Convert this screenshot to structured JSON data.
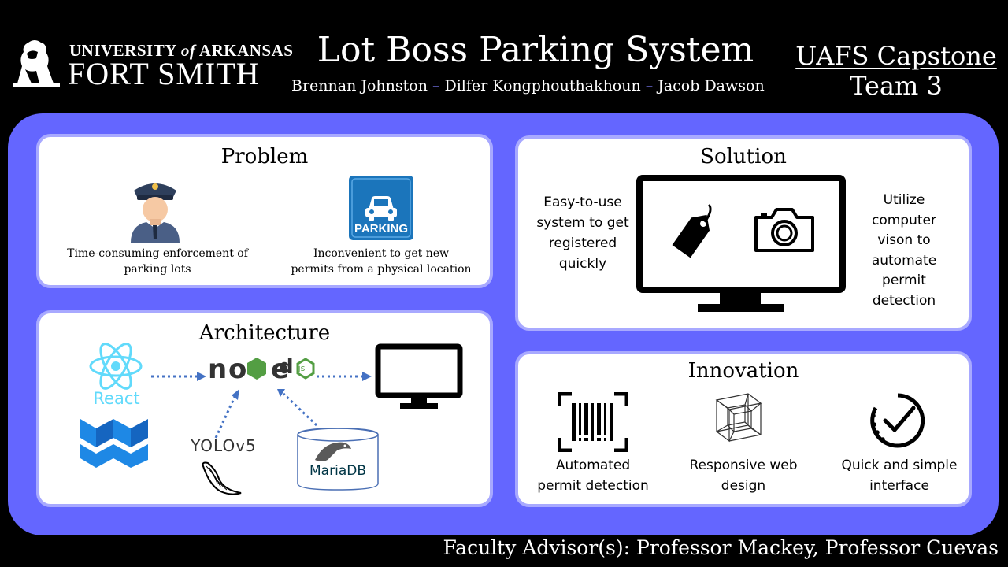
{
  "header": {
    "logo": {
      "line1_prefix": "UNIVERSITY ",
      "line1_of": "of",
      "line1_suffix": " ARKANSAS",
      "line2": "FORT SMITH",
      "icon": "lion-icon"
    },
    "title": "Lot Boss Parking System",
    "authors": [
      "Brennan Johnston",
      "Dilfer Kongphouthakhoun",
      "Jacob Dawson"
    ],
    "author_separator": "–",
    "capstone_line1": "UAFS Capstone",
    "capstone_line2": "Team 3"
  },
  "problem": {
    "title": "Problem",
    "items": [
      {
        "icon": "police-officer-icon",
        "caption_line1": "Time-consuming enforcement of",
        "caption_line2": "parking lots"
      },
      {
        "icon": "parking-sign-icon",
        "badge": "PARKING",
        "caption_line1": "Inconvenient  to get new",
        "caption_line2": "permits from a physical location"
      }
    ]
  },
  "solution": {
    "title": "Solution",
    "left_lines": [
      "Easy-to-use",
      "system to get",
      "registered",
      "quickly"
    ],
    "right_lines": [
      "Utilize",
      "computer",
      "vison to",
      "automate",
      "permit",
      "detection"
    ],
    "icons": [
      "monitor-icon",
      "tag-icon",
      "camera-icon"
    ]
  },
  "architecture": {
    "title": "Architecture",
    "react_label": "React",
    "yolo_label": "YOLOv5",
    "mariadb_label": "MariaDB",
    "node_label": "node",
    "js_label": "js",
    "icons": [
      "react-icon",
      "material-ui-icon",
      "nodejs-icon",
      "yolo-icon",
      "python-flask-icon",
      "mariadb-icon",
      "monitor-icon"
    ]
  },
  "innovation": {
    "title": "Innovation",
    "items": [
      {
        "icon": "barcode-scan-icon",
        "line1": "Automated",
        "line2": "permit detection"
      },
      {
        "icon": "tesseract-cube-icon",
        "line1": "Responsive  web",
        "line2": "design"
      },
      {
        "icon": "quick-check-icon",
        "line1": "Quick and simple",
        "line2": "interface"
      }
    ]
  },
  "footer": "Faculty Advisor(s): Professor Mackey, Professor Cuevas",
  "colors": {
    "frame": "#6466ff",
    "panel_border": "#a8a9ff",
    "arrow": "#4472c4",
    "react": "#61dafb",
    "mui": "#1e88e5",
    "parking": "#1b75bb"
  }
}
